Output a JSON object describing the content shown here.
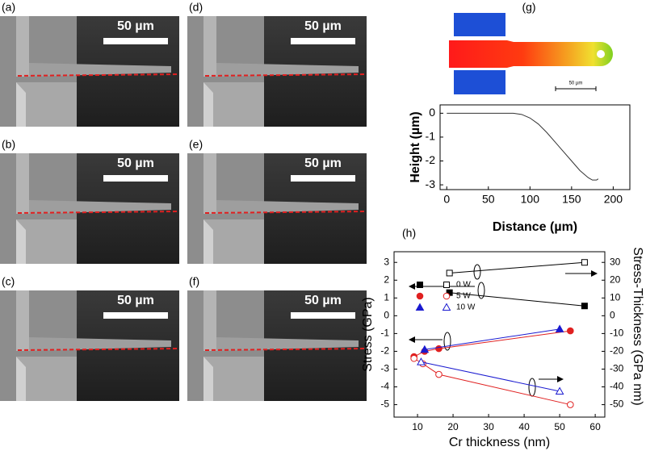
{
  "panels": [
    {
      "label": "(a)",
      "scale": "50 µm"
    },
    {
      "label": "(b)",
      "scale": "50 µm"
    },
    {
      "label": "(c)",
      "scale": "50 µm"
    },
    {
      "label": "(d)",
      "scale": "50 µm"
    },
    {
      "label": "(e)",
      "scale": "50 µm"
    },
    {
      "label": "(f)",
      "scale": "50 µm"
    }
  ],
  "panel_g": {
    "label": "(g)",
    "scale": "50 µm"
  },
  "chart_data": [
    {
      "type": "line",
      "xlabel": "Distance (µm)",
      "ylabel": "Height (µm)",
      "x": [
        0,
        20,
        40,
        60,
        80,
        90,
        100,
        110,
        120,
        130,
        140,
        150,
        160,
        170,
        175,
        180,
        182
      ],
      "series": [
        {
          "color": "#333333",
          "values": [
            0,
            0,
            0,
            0,
            0,
            -0.05,
            -0.2,
            -0.45,
            -0.8,
            -1.2,
            -1.6,
            -2.0,
            -2.4,
            -2.7,
            -2.8,
            -2.8,
            -2.75
          ]
        }
      ],
      "xlim": [
        -8,
        220
      ],
      "xticks": [
        0,
        50,
        100,
        150,
        200
      ],
      "ylim": [
        -3.2,
        0.35
      ],
      "yticks": [
        0,
        -1,
        -2,
        -3
      ]
    },
    {
      "type": "scatter",
      "label": "(h)",
      "xlabel": "Cr thickness (nm)",
      "ylabel": "Stress (GPa)",
      "y2label": "Stress-Thickness (GPa nm)",
      "series": [
        {
          "name": "0 W",
          "color": "#000000",
          "marker": "square",
          "filled": true,
          "x": [
            19,
            57
          ],
          "values": [
            1.3,
            0.55
          ]
        },
        {
          "name": "5 W",
          "color": "#e02020",
          "marker": "circle",
          "filled": true,
          "x": [
            9,
            12,
            16,
            53
          ],
          "values": [
            -2.3,
            -2.0,
            -1.85,
            -0.85
          ]
        },
        {
          "name": "10 W",
          "color": "#1a1ad0",
          "marker": "triangle",
          "filled": true,
          "x": [
            12,
            50
          ],
          "values": [
            -1.9,
            -0.75
          ]
        },
        {
          "color": "#000000",
          "marker": "square",
          "filled": false,
          "axis": "y2",
          "x": [
            19,
            57
          ],
          "values": [
            24,
            30
          ]
        },
        {
          "color": "#e02020",
          "marker": "circle",
          "filled": false,
          "axis": "y2",
          "x": [
            9,
            11.5,
            16,
            53
          ],
          "values": [
            -24,
            -27,
            -33,
            -50
          ]
        },
        {
          "color": "#1a1ad0",
          "marker": "triangle",
          "filled": false,
          "axis": "y2",
          "x": [
            11,
            50
          ],
          "values": [
            -26,
            -42.5
          ]
        }
      ],
      "xlim": [
        3.4,
        62.7
      ],
      "xticks": [
        10,
        20,
        30,
        40,
        50,
        60
      ],
      "ylim": [
        -5.7,
        3.6
      ],
      "yticks": [
        3,
        2,
        1,
        0,
        -1,
        -2,
        -3,
        -4,
        -5
      ],
      "y2lim": [
        -57,
        36
      ],
      "y2ticks": [
        30,
        20,
        10,
        0,
        -10,
        -20,
        -30,
        -40,
        -50
      ]
    }
  ]
}
